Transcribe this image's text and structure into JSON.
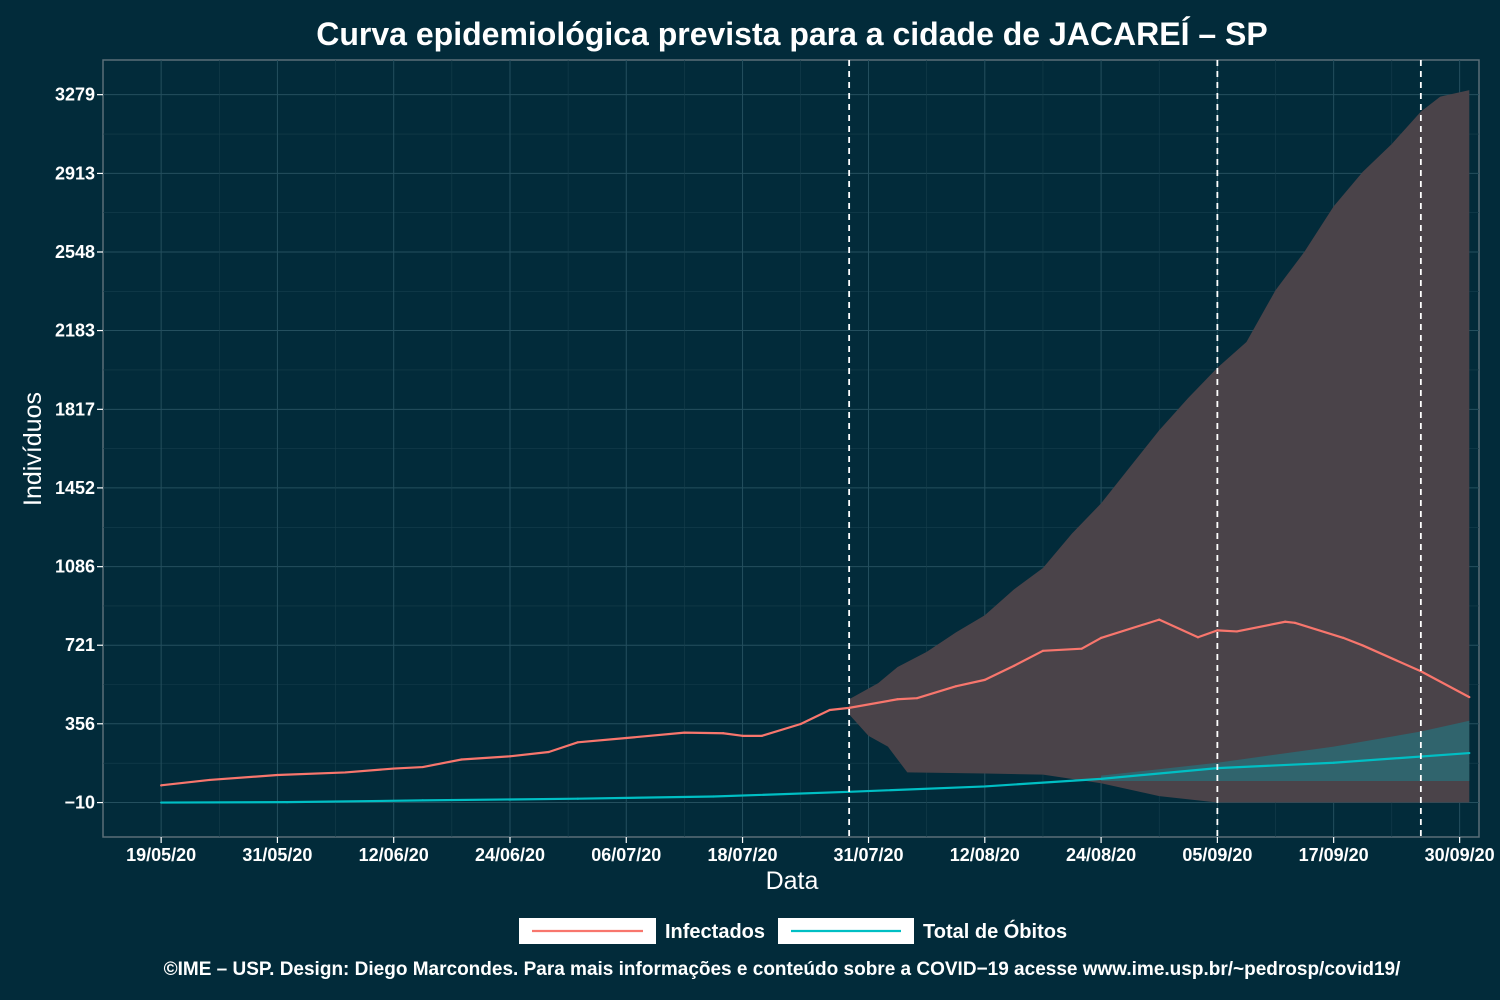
{
  "chart_data": {
    "type": "line",
    "title": "Curva epidemiológica prevista para a cidade de JACAREÍ – SP",
    "xlabel": "Data",
    "ylabel": "Indivíduos",
    "x_ticks": [
      "19/05/20",
      "31/05/20",
      "12/06/20",
      "24/06/20",
      "06/07/20",
      "18/07/20",
      "31/07/20",
      "12/08/20",
      "24/08/20",
      "05/09/20",
      "17/09/20",
      "30/09/20"
    ],
    "y_ticks": [
      -10,
      356,
      721,
      1086,
      1452,
      1817,
      2183,
      2548,
      2913,
      3279
    ],
    "ylim": [
      -170,
      3440
    ],
    "xlim": [
      "2020-05-13",
      "2020-10-02"
    ],
    "vlines": [
      "2020-07-29",
      "2020-09-05",
      "2020-09-26"
    ],
    "grid": true,
    "legend_position": "bottom",
    "series": [
      {
        "name": "Infectados",
        "color": "#f8766d",
        "points": [
          [
            "2020-05-19",
            70
          ],
          [
            "2020-05-24",
            95
          ],
          [
            "2020-05-31",
            118
          ],
          [
            "2020-06-07",
            130
          ],
          [
            "2020-06-12",
            148
          ],
          [
            "2020-06-15",
            155
          ],
          [
            "2020-06-19",
            190
          ],
          [
            "2020-06-24",
            205
          ],
          [
            "2020-06-28",
            225
          ],
          [
            "2020-07-01",
            270
          ],
          [
            "2020-07-06",
            290
          ],
          [
            "2020-07-12",
            315
          ],
          [
            "2020-07-16",
            312
          ],
          [
            "2020-07-18",
            300
          ],
          [
            "2020-07-20",
            300
          ],
          [
            "2020-07-24",
            355
          ],
          [
            "2020-07-27",
            420
          ],
          [
            "2020-07-29",
            430
          ],
          [
            "2020-08-03",
            470
          ],
          [
            "2020-08-05",
            475
          ],
          [
            "2020-08-09",
            530
          ],
          [
            "2020-08-12",
            560
          ],
          [
            "2020-08-15",
            625
          ],
          [
            "2020-08-18",
            695
          ],
          [
            "2020-08-22",
            705
          ],
          [
            "2020-08-24",
            755
          ],
          [
            "2020-08-30",
            840
          ],
          [
            "2020-09-03",
            758
          ],
          [
            "2020-09-05",
            790
          ],
          [
            "2020-09-07",
            785
          ],
          [
            "2020-09-12",
            830
          ],
          [
            "2020-09-13",
            825
          ],
          [
            "2020-09-18",
            755
          ],
          [
            "2020-09-20",
            720
          ],
          [
            "2020-09-26",
            600
          ],
          [
            "2020-10-01",
            480
          ]
        ]
      },
      {
        "name": "Total de Óbitos",
        "color": "#00bfc4",
        "points": [
          [
            "2020-05-19",
            -10
          ],
          [
            "2020-06-01",
            -8
          ],
          [
            "2020-06-15",
            0
          ],
          [
            "2020-07-01",
            8
          ],
          [
            "2020-07-15",
            18
          ],
          [
            "2020-07-29",
            40
          ],
          [
            "2020-08-12",
            65
          ],
          [
            "2020-08-24",
            100
          ],
          [
            "2020-09-05",
            150
          ],
          [
            "2020-09-17",
            175
          ],
          [
            "2020-10-01",
            220
          ]
        ]
      }
    ],
    "bands": [
      {
        "series": "Infectados",
        "color": "#4a4349",
        "upper": [
          [
            "2020-07-29",
            470
          ],
          [
            "2020-08-01",
            545
          ],
          [
            "2020-08-03",
            620
          ],
          [
            "2020-08-06",
            690
          ],
          [
            "2020-08-09",
            780
          ],
          [
            "2020-08-12",
            860
          ],
          [
            "2020-08-15",
            980
          ],
          [
            "2020-08-18",
            1080
          ],
          [
            "2020-08-21",
            1240
          ],
          [
            "2020-08-24",
            1380
          ],
          [
            "2020-08-27",
            1550
          ],
          [
            "2020-08-30",
            1720
          ],
          [
            "2020-09-02",
            1870
          ],
          [
            "2020-09-05",
            2010
          ],
          [
            "2020-09-08",
            2130
          ],
          [
            "2020-09-11",
            2370
          ],
          [
            "2020-09-14",
            2550
          ],
          [
            "2020-09-17",
            2760
          ],
          [
            "2020-09-20",
            2920
          ],
          [
            "2020-09-23",
            3050
          ],
          [
            "2020-09-26",
            3200
          ],
          [
            "2020-09-28",
            3270
          ],
          [
            "2020-10-01",
            3300
          ]
        ],
        "lower": [
          [
            "2020-07-29",
            400
          ],
          [
            "2020-07-31",
            300
          ],
          [
            "2020-08-02",
            250
          ],
          [
            "2020-08-04",
            130
          ],
          [
            "2020-08-12",
            125
          ],
          [
            "2020-08-18",
            120
          ],
          [
            "2020-08-24",
            80
          ],
          [
            "2020-08-30",
            20
          ],
          [
            "2020-09-05",
            -10
          ],
          [
            "2020-09-17",
            -10
          ],
          [
            "2020-10-01",
            -10
          ]
        ]
      },
      {
        "series": "Total de Óbitos",
        "color": "#2b6a73",
        "upper": [
          [
            "2020-08-24",
            115
          ],
          [
            "2020-09-05",
            175
          ],
          [
            "2020-09-17",
            250
          ],
          [
            "2020-09-26",
            320
          ],
          [
            "2020-10-01",
            370
          ]
        ],
        "lower": [
          [
            "2020-08-24",
            90
          ],
          [
            "2020-09-05",
            90
          ],
          [
            "2020-09-17",
            90
          ],
          [
            "2020-10-01",
            90
          ]
        ]
      }
    ],
    "caption": "©IME – USP. Design: Diego Marcondes. Para mais informações e conteúdo sobre a COVID−19 acesse www.ime.usp.br/~pedrosp/covid19/"
  }
}
